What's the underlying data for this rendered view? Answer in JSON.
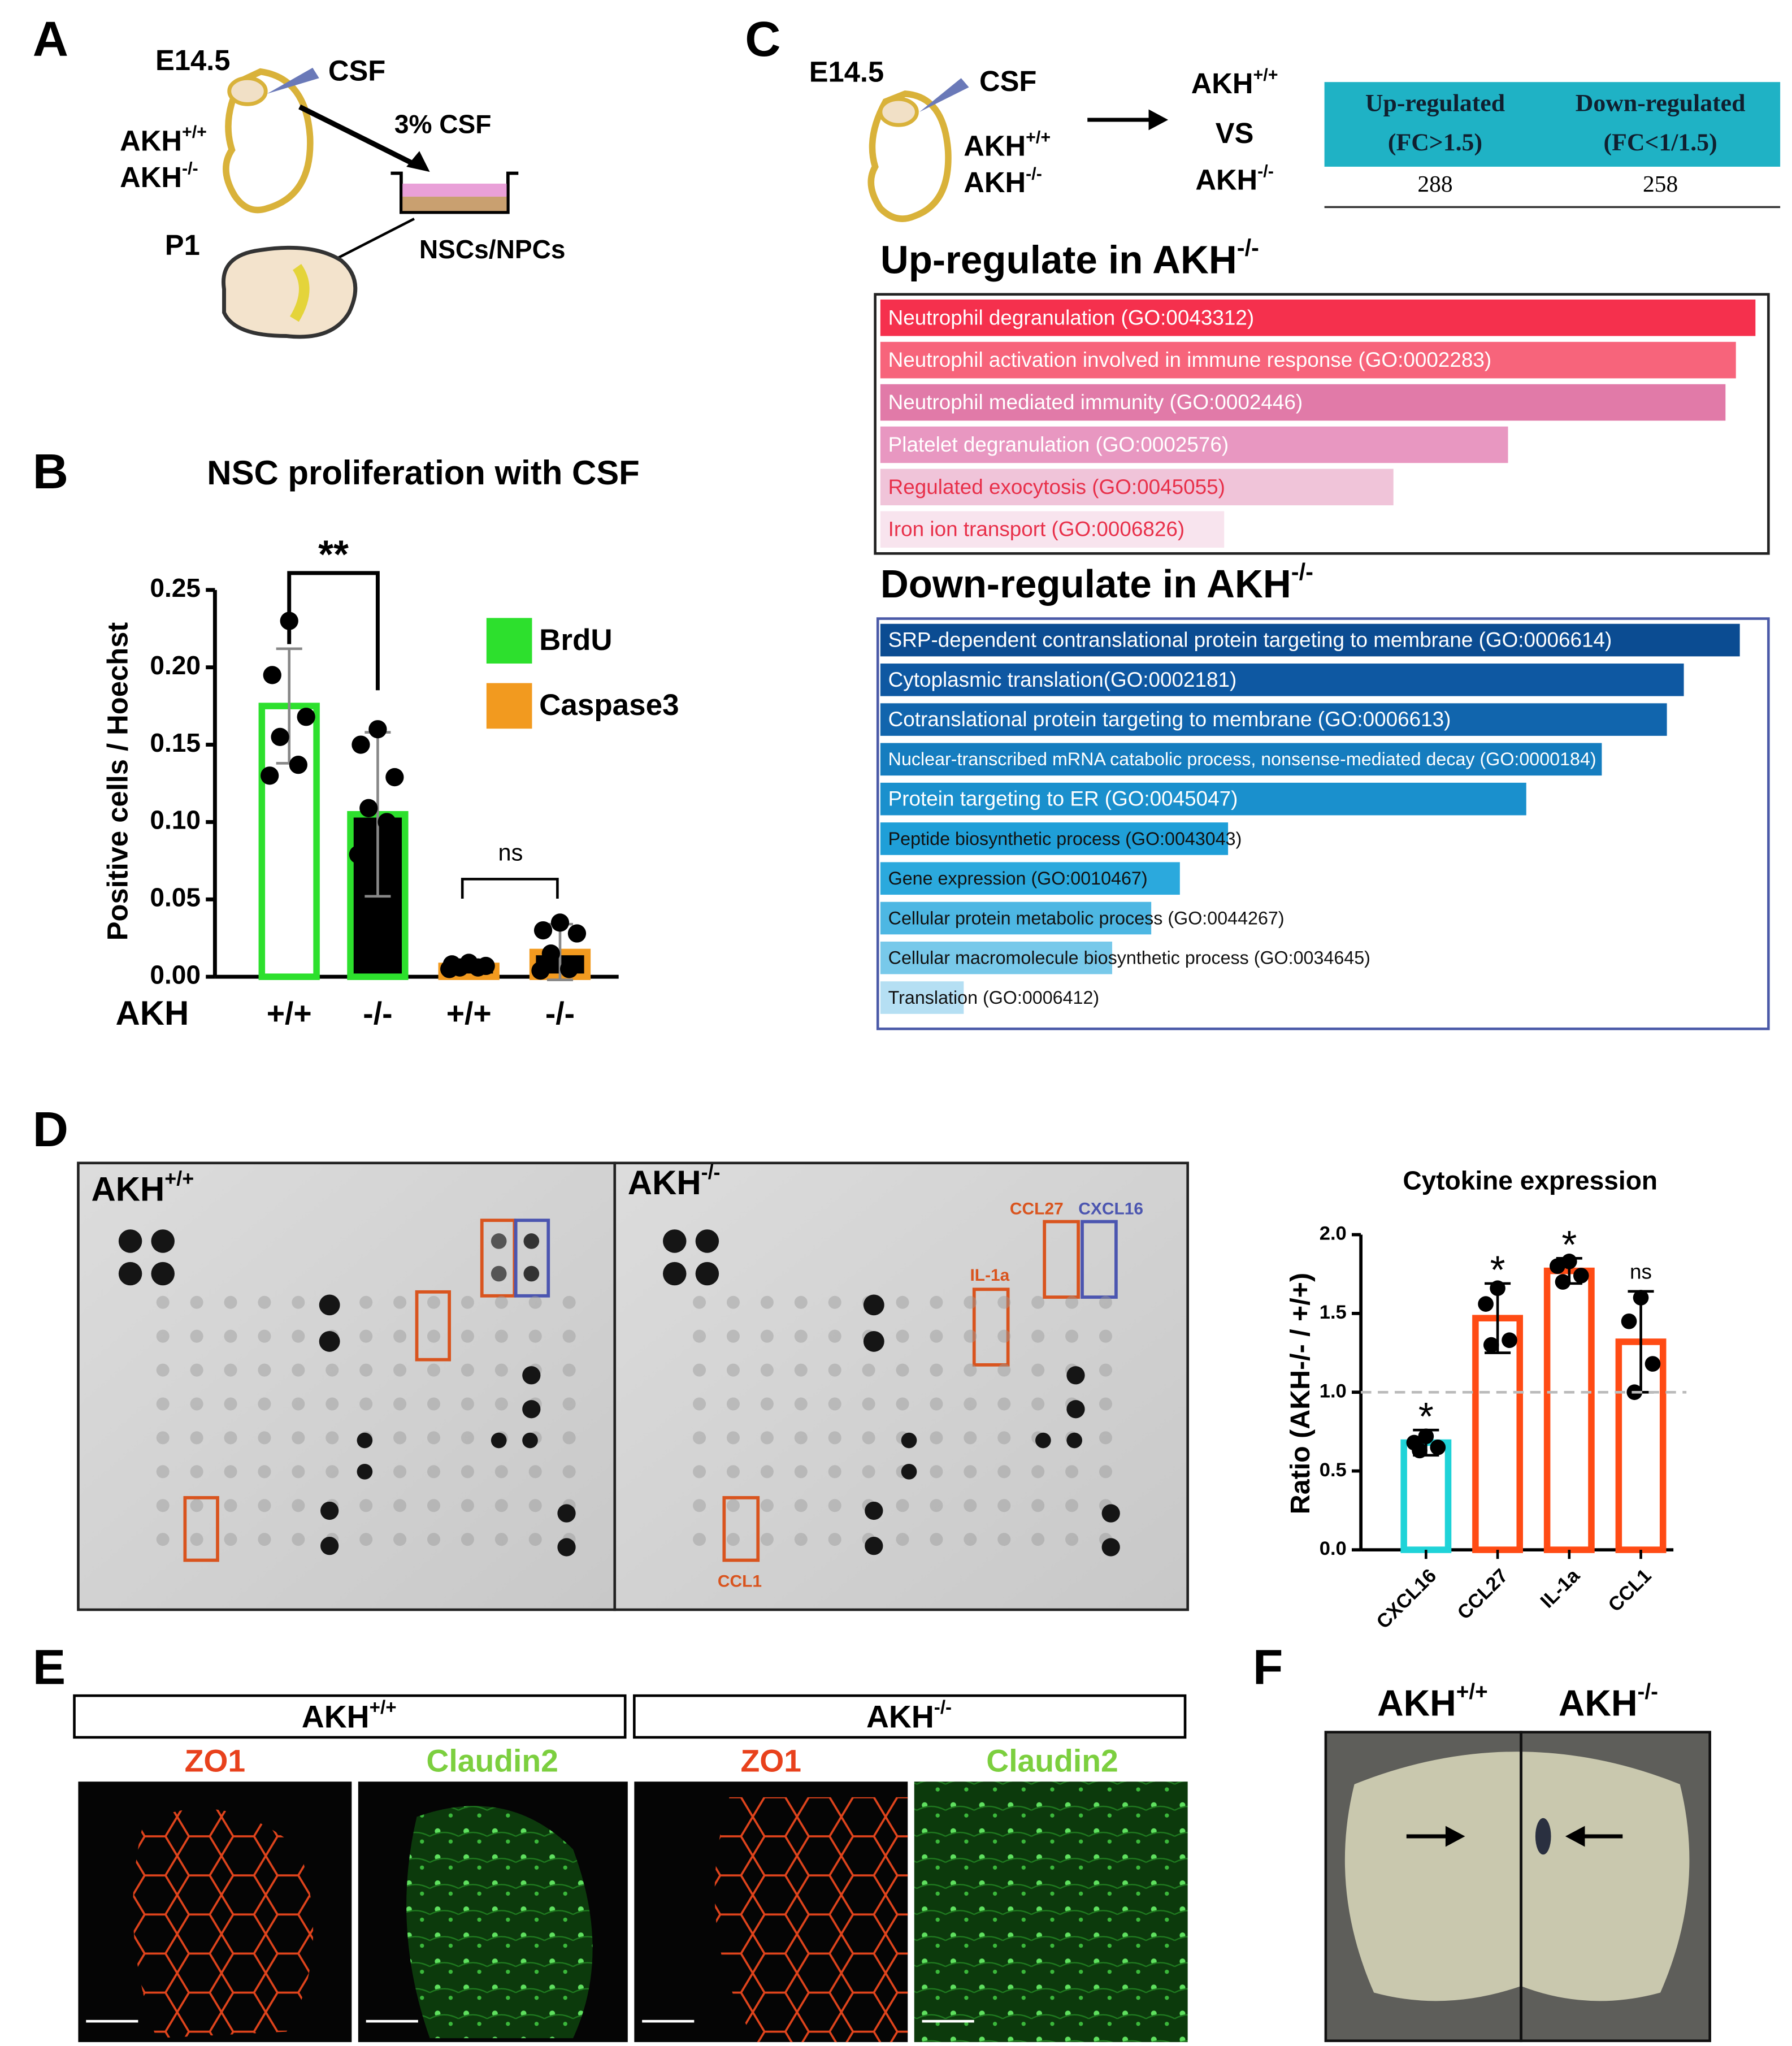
{
  "panel_labels": [
    "A",
    "B",
    "C",
    "D",
    "E",
    "F"
  ],
  "panel_a": {
    "stage": "E14.5",
    "source": "CSF",
    "genotypes": [
      {
        "text": "AKH",
        "sup": "+/+"
      },
      {
        "text": "AKH",
        "sup": "-/-"
      }
    ],
    "treatment": "3% CSF",
    "postnatal": "P1",
    "cells": "NSCs/NPCs"
  },
  "panel_c": {
    "stage": "E14.5",
    "source": "CSF",
    "genotypes": [
      {
        "text": "AKH",
        "sup": "+/+"
      },
      {
        "text": "AKH",
        "sup": "-/-"
      }
    ],
    "comparison": {
      "left": {
        "text": "AKH",
        "sup": "+/+"
      },
      "word": "VS",
      "right": {
        "text": "AKH",
        "sup": "-/-"
      }
    },
    "table": {
      "headers": [
        [
          "Up-regulated",
          "(FC>1.5)"
        ],
        [
          "Down-regulated",
          "(FC<1/1.5)"
        ]
      ],
      "rows": [
        [
          288,
          258
        ]
      ]
    }
  },
  "chart_data": [
    {
      "type": "bar",
      "title": "NSC proliferation with CSF",
      "x_label": "AKH",
      "y_label": "Positive cells / Hoechst",
      "categories": [
        "+/+",
        "-/-",
        "+/+",
        "-/-"
      ],
      "series": [
        {
          "name": "BrdU",
          "color": "#2de02d",
          "values": [
            0.175,
            0.105,
            null,
            null
          ],
          "errors": [
            0.037,
            0.053,
            null,
            null
          ],
          "points": [
            [
              0.23,
              0.195,
              0.168,
              0.155,
              0.137,
              0.13
            ],
            [
              0.16,
              0.15,
              0.129,
              0.109,
              0.1,
              0.079
            ],
            null,
            null
          ]
        },
        {
          "name": "Caspase3",
          "color": "#f29a1f",
          "values": [
            null,
            null,
            0.007,
            0.016
          ],
          "errors": [
            null,
            null,
            0.003,
            0.018
          ],
          "points": [
            null,
            null,
            [
              0.009,
              0.008,
              0.007,
              0.006,
              0.006,
              0.005
            ],
            [
              0.035,
              0.03,
              0.028,
              0.015,
              0.005,
              0.004
            ]
          ]
        }
      ],
      "bar_fills": [
        "#ffffff",
        "#000000",
        "#000000",
        "#000000"
      ],
      "annotations": [
        "**",
        "ns"
      ],
      "ylim": [
        0,
        0.25
      ],
      "yticks": [
        {
          "value": 0,
          "label": "0.00"
        },
        {
          "value": 0.05,
          "label": "0.05"
        },
        {
          "value": 0.1,
          "label": "0.10"
        },
        {
          "value": 0.15,
          "label": "0.15"
        },
        {
          "value": 0.2,
          "label": "0.20"
        },
        {
          "value": 0.25,
          "label": "0.25"
        }
      ]
    },
    {
      "type": "hbar",
      "title": {
        "text": "Up-regulate in AKH",
        "sup": "-/-"
      },
      "categories": [
        "Neutrophil degranulation (GO:0043312)",
        "Neutrophil activation involved in immune response (GO:0002283)",
        "Neutrophil mediated immunity (GO:0002446)",
        "Platelet degranulation (GO:0002576)",
        "Regulated exocytosis (GO:0045055)",
        "Iron ion transport (GO:0006826)"
      ],
      "values": [
        672,
        657,
        649,
        482,
        394,
        264
      ],
      "colors": [
        "#f5304d",
        "#f7647b",
        "#e17aa8",
        "#e897c1",
        "#f0c4d9",
        "#f8e4ee"
      ],
      "label_colors": [
        "#ffffff",
        "#ffffff",
        "#ffffff",
        "#ffffff",
        "#e8304a",
        "#e8304a"
      ],
      "xlim": [
        0,
        690
      ]
    },
    {
      "type": "hbar",
      "title": {
        "text": "Down-regulate in AKH",
        "sup": "-/-"
      },
      "categories": [
        "SRP-dependent contranslational protein targeting to membrane (GO:0006614)",
        "Cytoplasmic translation(GO:0002181)",
        "Cotranslational protein targeting to membrane (GO:0006613)",
        "Nuclear-transcribed mRNA catabolic process, nonsense-mediated decay (GO:0000184)",
        "Protein targeting to ER (GO:0045047)",
        "Peptide biosynthetic process (GO:0043043)",
        "Gene expression (GO:0010467)",
        "Cellular protein metabolic process (GO:0044267)",
        "Cellular macromolecule biosynthetic process (GO:0034645)",
        "Translation (GO:0006412)"
      ],
      "values": [
        660,
        617,
        604,
        554,
        496,
        267,
        230,
        208,
        178,
        64
      ],
      "colors": [
        "#0b4c92",
        "#0e58a2",
        "#1165ad",
        "#157dbf",
        "#1a90cd",
        "#1f9fd8",
        "#2ba9dd",
        "#4db7e3",
        "#78c9ea",
        "#b5dff3"
      ],
      "label_colors": [
        "#ffffff",
        "#ffffff",
        "#ffffff",
        "#ffffff",
        "#ffffff",
        "#111111",
        "#111111",
        "#111111",
        "#111111",
        "#111111"
      ],
      "xlim": [
        0,
        690
      ]
    },
    {
      "type": "bar",
      "title": "Cytokine expression",
      "y_label": "Ratio (AKH-/- / +/+)",
      "categories": [
        "CXCL16",
        "CCL27",
        "IL-1a",
        "CCL1"
      ],
      "values": [
        0.68,
        1.47,
        1.77,
        1.32
      ],
      "errors": [
        0.08,
        0.22,
        0.08,
        0.32
      ],
      "colors": [
        "#1fd3d8",
        "#ff4b14",
        "#ff4b14",
        "#ff4b14"
      ],
      "points": [
        [
          0.72,
          0.68,
          0.65,
          0.63
        ],
        [
          1.66,
          1.56,
          1.33,
          1.3
        ],
        [
          1.83,
          1.8,
          1.74,
          1.7
        ],
        [
          1.6,
          1.45,
          1.18,
          1.0
        ]
      ],
      "significance": [
        "*",
        "*",
        "*",
        "ns"
      ],
      "reference_line": 1.0,
      "ylim": [
        0,
        2
      ],
      "yticks": [
        {
          "value": 0,
          "label": "0.0"
        },
        {
          "value": 0.5,
          "label": "0.5"
        },
        {
          "value": 1,
          "label": "1.0"
        },
        {
          "value": 1.5,
          "label": "1.5"
        },
        {
          "value": 2,
          "label": "2.0"
        }
      ]
    }
  ],
  "panel_d": {
    "blots": [
      {
        "text": "AKH",
        "sup": "+/+"
      },
      {
        "text": "AKH",
        "sup": "-/-"
      }
    ],
    "spot_labels": [
      "CCL27",
      "CXCL16",
      "IL-1a",
      "CCL1"
    ]
  },
  "panel_e": {
    "groups": [
      {
        "text": "AKH",
        "sup": "+/+"
      },
      {
        "text": "AKH",
        "sup": "-/-"
      }
    ],
    "stains": [
      "ZO1",
      "Claudin2",
      "ZO1",
      "Claudin2"
    ]
  },
  "panel_f": {
    "groups": [
      {
        "text": "AKH",
        "sup": "+/+"
      },
      {
        "text": "AKH",
        "sup": "-/-"
      }
    ]
  }
}
